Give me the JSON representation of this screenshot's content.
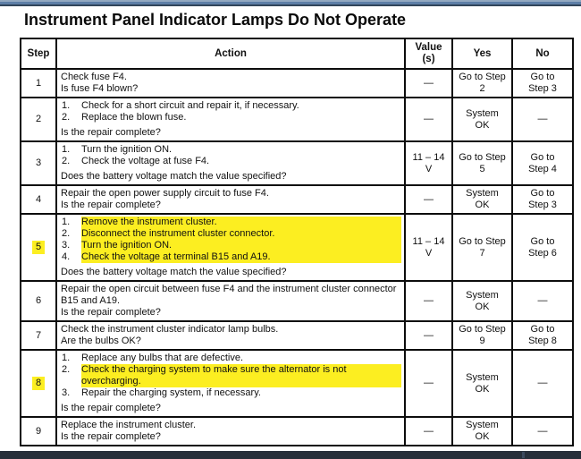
{
  "page": {
    "title": "Instrument Panel Indicator Lamps Do Not Operate"
  },
  "colors": {
    "highlight_yellow": "#fcee21",
    "top_bar_blue": "#5d7ea6",
    "bottom_bar_dark": "#272f3a",
    "table_border": "#0d0d0d"
  },
  "table": {
    "headers": [
      "Step",
      "Action",
      "Value\n(s)",
      "Yes",
      "No"
    ],
    "rows": [
      {
        "step": "1",
        "step_highlighted": false,
        "lead": "Check fuse F4.",
        "items": [],
        "question": "Is fuse F4 blown?",
        "value": "—",
        "yes": "Go to Step\n2",
        "no": "Go to\nStep 3"
      },
      {
        "step": "2",
        "step_highlighted": false,
        "lead": "",
        "items": [
          {
            "text": "Check for a short circuit and repair it, if necessary.",
            "highlighted": false
          },
          {
            "text": "Replace the blown fuse.",
            "highlighted": false
          }
        ],
        "question": "Is the repair complete?",
        "value": "—",
        "yes": "System\nOK",
        "no": "—"
      },
      {
        "step": "3",
        "step_highlighted": false,
        "lead": "",
        "items": [
          {
            "text": "Turn the ignition ON.",
            "highlighted": false
          },
          {
            "text": "Check the voltage at fuse F4.",
            "highlighted": false
          }
        ],
        "question": "Does the battery voltage match the value specified?",
        "value": "11 – 14\nV",
        "yes": "Go to Step\n5",
        "no": "Go to\nStep 4"
      },
      {
        "step": "4",
        "step_highlighted": false,
        "lead": "Repair the open power supply circuit to fuse F4.",
        "items": [],
        "question": "Is the repair complete?",
        "value": "—",
        "yes": "System\nOK",
        "no": "Go to\nStep 3"
      },
      {
        "step": "5",
        "step_highlighted": true,
        "lead": "",
        "items": [
          {
            "text": "Remove the instrument cluster.",
            "highlighted": true
          },
          {
            "text": "Disconnect the instrument cluster connector.",
            "highlighted": true
          },
          {
            "text": "Turn the ignition ON.",
            "highlighted": true
          },
          {
            "text": "Check the voltage at terminal B15 and A19.",
            "highlighted": true
          }
        ],
        "question": "Does the battery voltage match the value specified?",
        "value": "11 – 14\nV",
        "yes": "Go to Step\n7",
        "no": "Go to\nStep 6"
      },
      {
        "step": "6",
        "step_highlighted": false,
        "lead": "Repair the open circuit between fuse F4 and the instrument cluster connector B15 and A19.",
        "items": [],
        "question": "Is the repair complete?",
        "value": "—",
        "yes": "System\nOK",
        "no": "—"
      },
      {
        "step": "7",
        "step_highlighted": false,
        "lead": "Check the instrument cluster indicator lamp bulbs.",
        "items": [],
        "question": "Are the bulbs OK?",
        "value": "—",
        "yes": "Go to Step\n9",
        "no": "Go to\nStep 8"
      },
      {
        "step": "8",
        "step_highlighted": true,
        "lead": "",
        "items": [
          {
            "text": "Replace any bulbs that are defective.",
            "highlighted": false
          },
          {
            "text": "Check the charging system to make sure the alternator is not overcharging.",
            "highlighted": true
          },
          {
            "text": "Repair the charging system, if necessary.",
            "highlighted": false
          }
        ],
        "question": "Is the repair complete?",
        "value": "—",
        "yes": "System\nOK",
        "no": "—"
      },
      {
        "step": "9",
        "step_highlighted": false,
        "lead": "Replace the instrument cluster.",
        "items": [],
        "question": "Is the repair complete?",
        "value": "—",
        "yes": "System\nOK",
        "no": "—"
      }
    ]
  }
}
